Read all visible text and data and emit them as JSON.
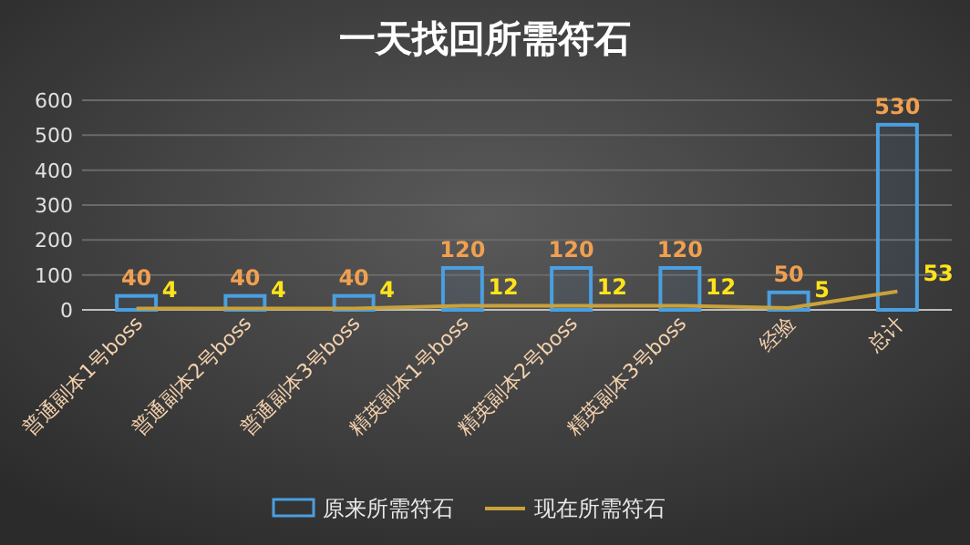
{
  "chart_data": {
    "type": "bar",
    "title": "一天找回所需符石",
    "categories": [
      "普通副本1号boss",
      "普通副本2号boss",
      "普通副本3号boss",
      "精英副本1号boss",
      "精英副本2号boss",
      "精英副本3号boss",
      "经验",
      "总计"
    ],
    "series": [
      {
        "name": "原来所需符石",
        "color": "#4a9fe0",
        "values": [
          40,
          40,
          40,
          120,
          120,
          120,
          50,
          530
        ]
      },
      {
        "name": "现在所需符石",
        "type": "line",
        "color": "#c9a23a",
        "values": [
          4,
          4,
          4,
          12,
          12,
          12,
          5,
          53
        ]
      }
    ],
    "ylim": [
      0,
      600
    ],
    "yticks": [
      0,
      100,
      200,
      300,
      400,
      500,
      600
    ],
    "grid": "y",
    "legend": "bottom",
    "data_labels": true,
    "marker": "none",
    "line_style": "solid"
  }
}
